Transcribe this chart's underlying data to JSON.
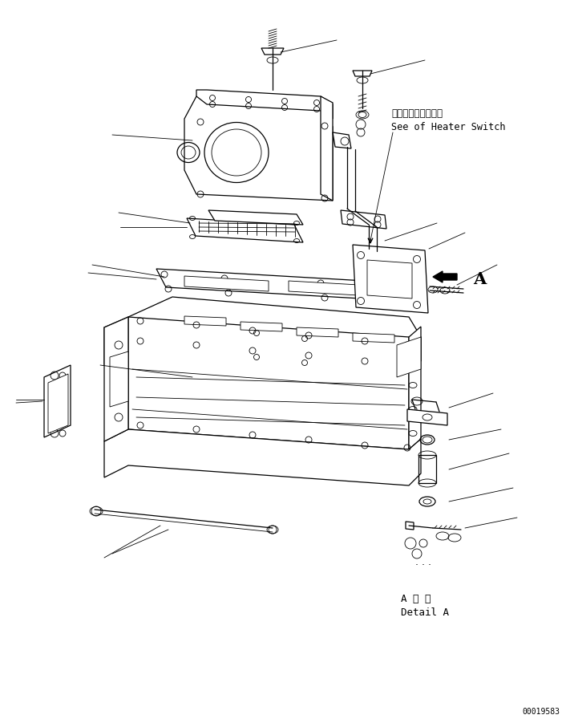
{
  "bg_color": "#ffffff",
  "line_color": "#000000",
  "fig_width": 7.01,
  "fig_height": 9.01,
  "dpi": 100,
  "annotation_heater_jp": "ヒータスイッチ参照",
  "annotation_heater_en": "See of Heater Switch",
  "annotation_detail_jp": "A 詳 細",
  "annotation_detail_en": "Detail A",
  "annotation_A": "A",
  "serial_number": "00019583"
}
